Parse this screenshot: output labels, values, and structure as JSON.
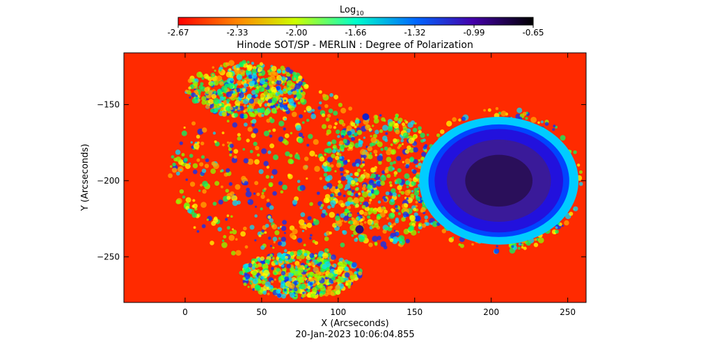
{
  "chart_data": {
    "type": "heatmap",
    "title": "Hinode SOT/SP - MERLIN : Degree of Polarization",
    "xlabel": "X (Arcseconds)",
    "ylabel": "Y (Arcseconds)",
    "timestamp": "20-Jan-2023 10:06:04.855",
    "x_range": [
      -40,
      262
    ],
    "y_range": [
      -280,
      -116
    ],
    "x_ticks": [
      0,
      50,
      100,
      150,
      200,
      250
    ],
    "y_ticks": [
      -150,
      -200,
      -250
    ],
    "colorbar": {
      "label_base": "Log",
      "label_sub": "10",
      "min": -2.67,
      "max": -0.65,
      "tick_labels": [
        "-2.67",
        "-2.33",
        "-2.00",
        "-1.66",
        "-1.32",
        "-0.99",
        "-0.65"
      ],
      "colormap": "rainbow (red to black)"
    },
    "features": [
      {
        "name": "sunspot umbra",
        "x": 205,
        "y": -200,
        "value": -0.65
      },
      {
        "name": "penumbra",
        "x": 200,
        "y": -200,
        "value": -1.0
      },
      {
        "name": "pore",
        "x": 114,
        "y": -232,
        "value": -0.9
      },
      {
        "name": "pore",
        "x": 118,
        "y": -158,
        "value": -1.1
      }
    ]
  }
}
